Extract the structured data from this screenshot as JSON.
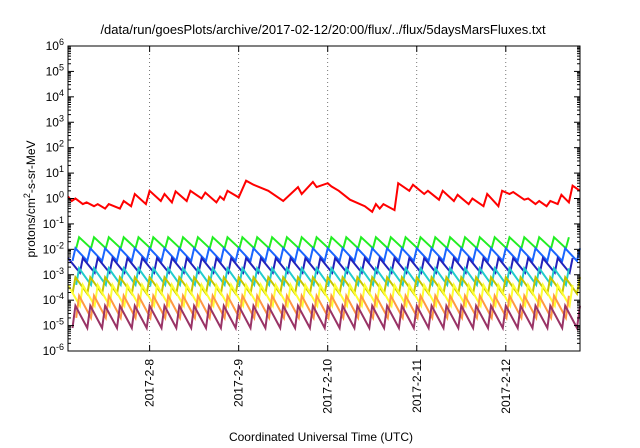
{
  "chart_data": {
    "type": "line",
    "title": "/data/run/goesPlots/archive/2017-02-12/20:00/flux/../flux/5daysMarsFluxes.txt",
    "xlabel": "Coordinated Universal Time (UTC)",
    "ylabel": {
      "prefix": "protons/cm",
      "sup": "2",
      "suffix": "-s-sr-MeV"
    },
    "x_range": [
      "2017-02-07 02:00",
      "2017-02-12 20:00"
    ],
    "y_range": [
      1e-06,
      1000000.0
    ],
    "y_scale": "log",
    "x_ticks": [
      {
        "label": "2017-2-8",
        "value": "2017-02-08"
      },
      {
        "label": "2017-2-9",
        "value": "2017-02-09"
      },
      {
        "label": "2017-2-10",
        "value": "2017-02-10"
      },
      {
        "label": "2017-2-11",
        "value": "2017-02-11"
      },
      {
        "label": "2017-2-12",
        "value": "2017-02-12"
      }
    ],
    "y_ticks": [
      {
        "base": "10",
        "exp": "-6"
      },
      {
        "base": "10",
        "exp": "-5"
      },
      {
        "base": "10",
        "exp": "-4"
      },
      {
        "base": "10",
        "exp": "-3"
      },
      {
        "base": "10",
        "exp": "-2"
      },
      {
        "base": "10",
        "exp": "-1"
      },
      {
        "base": "10",
        "exp": "0"
      },
      {
        "base": "10",
        "exp": "1"
      },
      {
        "base": "10",
        "exp": "2"
      },
      {
        "base": "10",
        "exp": "3"
      },
      {
        "base": "10",
        "exp": "4"
      },
      {
        "base": "10",
        "exp": "5"
      },
      {
        "base": "10",
        "exp": "6"
      }
    ],
    "grid": "dotted vertical lines at x ticks",
    "series": [
      {
        "color": "#ff0000",
        "x": [
          "2017-02-07 02:00",
          "2017-02-07 03:00",
          "2017-02-07 04:00",
          "2017-02-07 06:00",
          "2017-02-07 07:00",
          "2017-02-07 09:00",
          "2017-02-07 10:00",
          "2017-02-07 12:00",
          "2017-02-07 13:00",
          "2017-02-07 16:00",
          "2017-02-07 17:00",
          "2017-02-07 19:00",
          "2017-02-07 20:00",
          "2017-02-07 23:00",
          "2017-02-08 00:00",
          "2017-02-08 03:00",
          "2017-02-08 04:00",
          "2017-02-08 06:00",
          "2017-02-08 07:00",
          "2017-02-08 10:00",
          "2017-02-08 11:00",
          "2017-02-08 14:00",
          "2017-02-08 15:00",
          "2017-02-08 18:00",
          "2017-02-08 19:00",
          "2017-02-08 20:00",
          "2017-02-08 21:00",
          "2017-02-09 00:00",
          "2017-02-09 02:00",
          "2017-02-09 04:00",
          "2017-02-09 08:00",
          "2017-02-09 12:00",
          "2017-02-09 16:00",
          "2017-02-09 17:00",
          "2017-02-09 20:00",
          "2017-02-09 21:00",
          "2017-02-10 00:00",
          "2017-02-10 01:00",
          "2017-02-10 03:00",
          "2017-02-10 06:00",
          "2017-02-10 10:00",
          "2017-02-10 12:00",
          "2017-02-10 13:00",
          "2017-02-10 14:00",
          "2017-02-10 15:00",
          "2017-02-10 18:00",
          "2017-02-10 19:00",
          "2017-02-10 22:00",
          "2017-02-10 23:00",
          "2017-02-11 02:00",
          "2017-02-11 03:00",
          "2017-02-11 06:00",
          "2017-02-11 07:00",
          "2017-02-11 10:00",
          "2017-02-11 11:00",
          "2017-02-11 14:00",
          "2017-02-11 15:00",
          "2017-02-11 18:00",
          "2017-02-11 19:00",
          "2017-02-11 22:00",
          "2017-02-11 23:00",
          "2017-02-12 01:00",
          "2017-02-12 02:00",
          "2017-02-12 05:00",
          "2017-02-12 06:00",
          "2017-02-12 08:00",
          "2017-02-12 09:00",
          "2017-02-12 11:00",
          "2017-02-12 12:00",
          "2017-02-12 14:00",
          "2017-02-12 15:00",
          "2017-02-12 17:00",
          "2017-02-12 18:00",
          "2017-02-12 20:00"
        ],
        "y": [
          1.2,
          0.8,
          1.0,
          0.6,
          0.7,
          0.5,
          0.6,
          0.4,
          0.6,
          0.4,
          0.8,
          0.5,
          1.5,
          0.6,
          2.0,
          0.8,
          1.5,
          0.7,
          1.9,
          0.8,
          2.0,
          1.0,
          1.7,
          0.7,
          1.2,
          0.9,
          2.0,
          1.1,
          5.0,
          3.5,
          2.0,
          0.8,
          2.8,
          1.5,
          4.5,
          2.8,
          4.0,
          3.0,
          2.0,
          0.9,
          0.5,
          0.3,
          0.6,
          0.4,
          0.6,
          0.35,
          4.0,
          2.0,
          3.5,
          1.5,
          2.0,
          0.9,
          2.0,
          0.8,
          1.4,
          0.6,
          1.0,
          0.5,
          1.5,
          0.5,
          2.0,
          1.5,
          1.8,
          0.9,
          1.0,
          0.6,
          0.8,
          0.5,
          0.8,
          0.6,
          1.4,
          0.7,
          3.2,
          2.0
        ]
      },
      {
        "color": "#22ee22",
        "period_hours": 4,
        "min": 0.011,
        "max": 0.03
      },
      {
        "color": "#1a66ff",
        "period_hours": 4,
        "min": 0.0035,
        "max": 0.011
      },
      {
        "color": "#2222bb",
        "period_hours": 4,
        "min": 0.0012,
        "max": 0.0045
      },
      {
        "color": "#22cccc",
        "period_hours": 4,
        "min": 0.0004,
        "max": 0.0018
      },
      {
        "color": "#c4c400",
        "period_hours": 4,
        "min": 0.00018,
        "max": 0.0008
      },
      {
        "color": "#ffff33",
        "period_hours": 4,
        "min": 6e-05,
        "max": 0.0004
      },
      {
        "color": "#ff9944",
        "period_hours": 4,
        "min": 2e-05,
        "max": 0.00015
      },
      {
        "color": "#993366",
        "period_hours": 4,
        "min": 8e-06,
        "max": 6e-05
      }
    ]
  }
}
